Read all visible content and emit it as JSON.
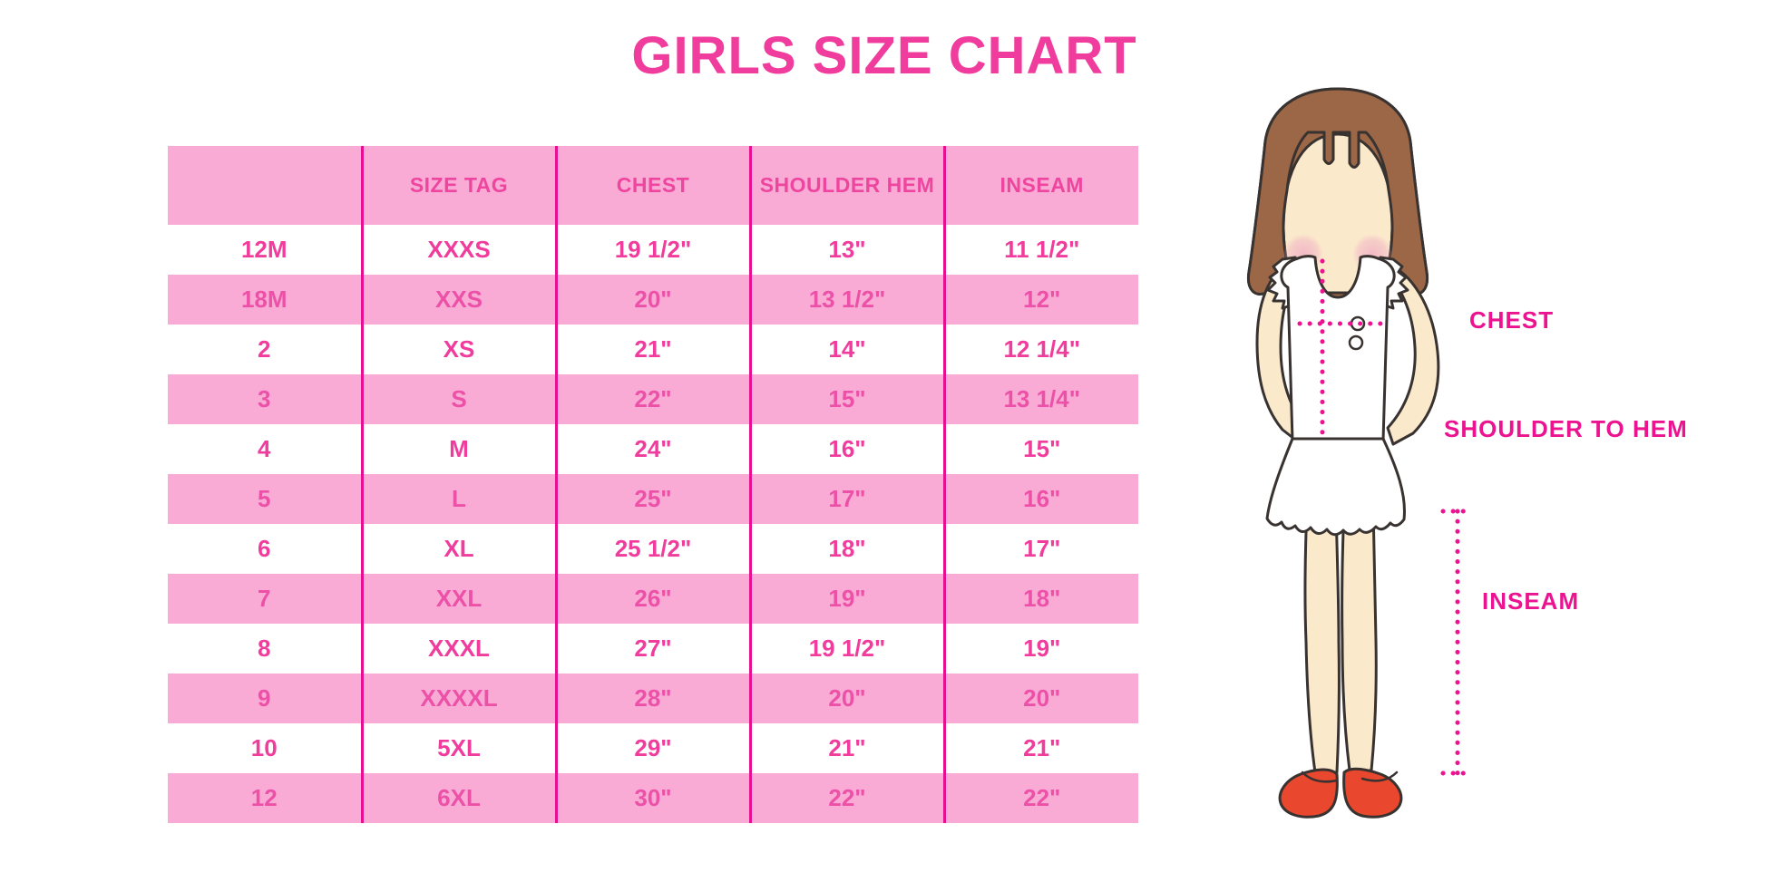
{
  "chart_data": {
    "type": "table",
    "title": "GIRLS SIZE CHART",
    "columns": [
      "",
      "SIZE TAG",
      "CHEST",
      "SHOULDER HEM",
      "INSEAM"
    ],
    "rows": [
      [
        "12M",
        "XXXS",
        "19 1/2\"",
        "13\"",
        "11 1/2\""
      ],
      [
        "18M",
        "XXS",
        "20\"",
        "13 1/2\"",
        "12\""
      ],
      [
        "2",
        "XS",
        "21\"",
        "14\"",
        "12 1/4\""
      ],
      [
        "3",
        "S",
        "22\"",
        "15\"",
        "13 1/4\""
      ],
      [
        "4",
        "M",
        "24\"",
        "16\"",
        "15\""
      ],
      [
        "5",
        "L",
        "25\"",
        "17\"",
        "16\""
      ],
      [
        "6",
        "XL",
        "25 1/2\"",
        "18\"",
        "17\""
      ],
      [
        "7",
        "XXL",
        "26\"",
        "19\"",
        "18\""
      ],
      [
        "8",
        "XXXL",
        "27\"",
        "19 1/2\"",
        "19\""
      ],
      [
        "9",
        "XXXXL",
        "28\"",
        "20\"",
        "20\""
      ],
      [
        "10",
        "5XL",
        "29\"",
        "21\"",
        "21\""
      ],
      [
        "12",
        "6XL",
        "30\"",
        "22\"",
        "22\""
      ]
    ],
    "layout": {
      "row_stripes": [
        "white",
        "pink"
      ],
      "gridlines": "vertical-only"
    }
  },
  "figure": {
    "labels": {
      "chest": "CHEST",
      "shoulder_to_hem": "SHOULDER TO HEM",
      "inseam": "INSEAM"
    },
    "colors": {
      "hair": "#9B6747",
      "skin": "#FBE9CB",
      "cheek": "#F2B8C6",
      "garment": "#FFFFFF",
      "shoe": "#E9472E",
      "outline": "#383230",
      "dotted_line": "#EC1390"
    }
  },
  "colors": {
    "accent_pink": "#F03C9C",
    "band_pink": "#F9ABD6",
    "divider_magenta": "#E60F8F"
  }
}
